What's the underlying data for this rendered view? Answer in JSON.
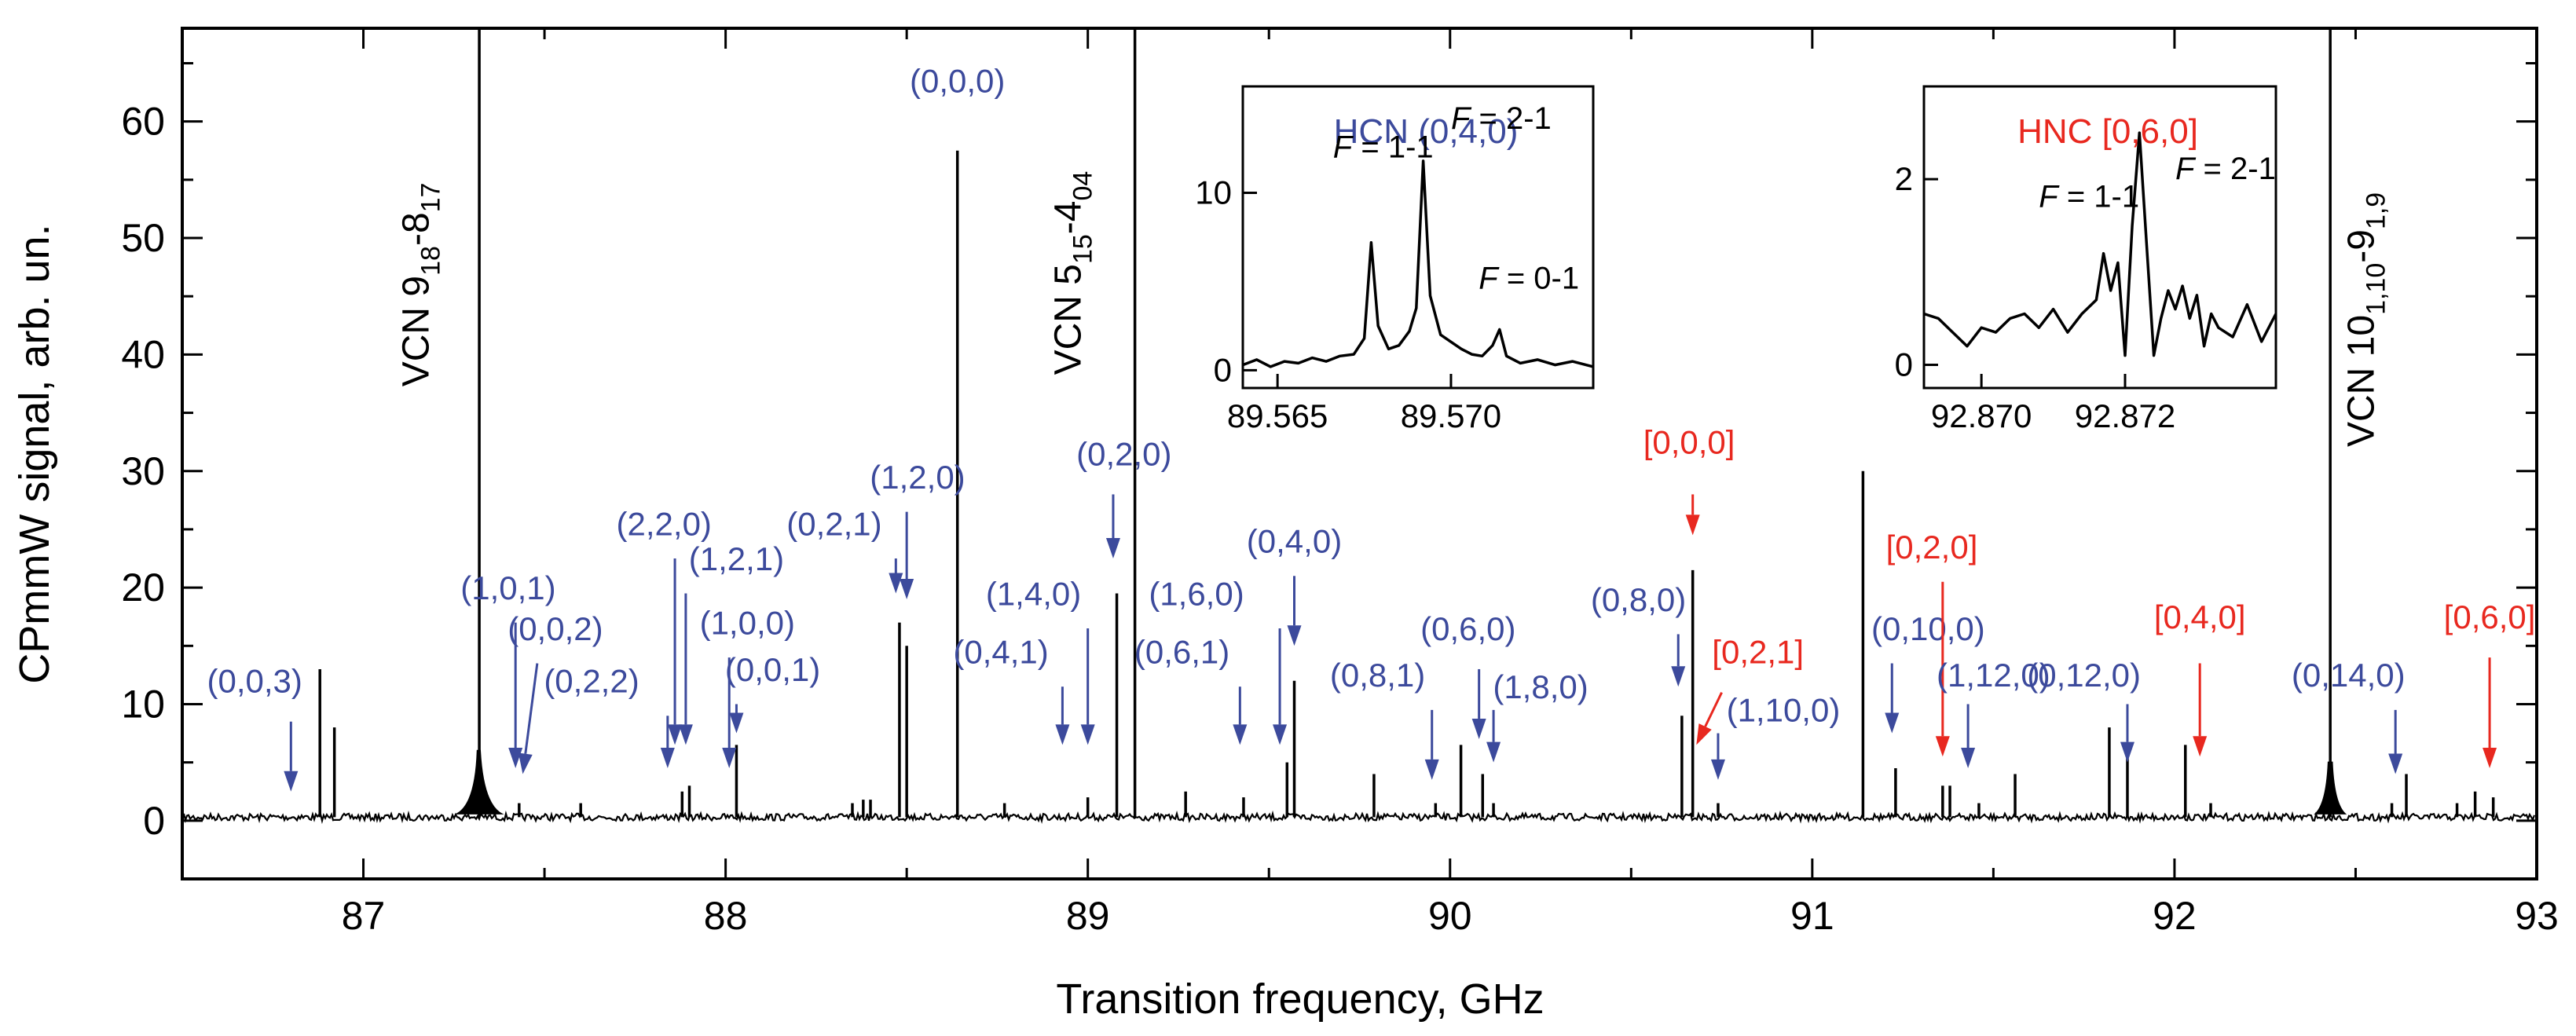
{
  "chart_data": {
    "type": "line",
    "title": "",
    "xlabel": "Transition frequency, GHz",
    "ylabel": "CPmmW signal, arb. un.",
    "xlim": [
      86.5,
      93.0
    ],
    "ylim": [
      -5,
      68
    ],
    "xticks": [
      "87",
      "88",
      "89",
      "90",
      "91",
      "92",
      "93"
    ],
    "yticks": [
      "0",
      "10",
      "20",
      "30",
      "40",
      "50",
      "60"
    ],
    "series": [
      {
        "name": "spectrum",
        "color": "#000000",
        "peaks": [
          {
            "x": 86.88,
            "y": 13
          },
          {
            "x": 86.92,
            "y": 8
          },
          {
            "x": 87.32,
            "y": 68
          },
          {
            "x": 87.43,
            "y": 1.5
          },
          {
            "x": 87.6,
            "y": 1.5
          },
          {
            "x": 87.88,
            "y": 2.5
          },
          {
            "x": 87.9,
            "y": 3
          },
          {
            "x": 88.03,
            "y": 6.5
          },
          {
            "x": 88.35,
            "y": 1.5
          },
          {
            "x": 88.38,
            "y": 1.8
          },
          {
            "x": 88.4,
            "y": 1.8
          },
          {
            "x": 88.48,
            "y": 17
          },
          {
            "x": 88.5,
            "y": 15
          },
          {
            "x": 88.64,
            "y": 57.5
          },
          {
            "x": 88.77,
            "y": 1.5
          },
          {
            "x": 89.0,
            "y": 2
          },
          {
            "x": 89.08,
            "y": 19.5
          },
          {
            "x": 89.13,
            "y": 68
          },
          {
            "x": 89.27,
            "y": 2.5
          },
          {
            "x": 89.43,
            "y": 2
          },
          {
            "x": 89.55,
            "y": 5
          },
          {
            "x": 89.57,
            "y": 12
          },
          {
            "x": 89.79,
            "y": 4
          },
          {
            "x": 89.96,
            "y": 1.5
          },
          {
            "x": 90.03,
            "y": 6.5
          },
          {
            "x": 90.09,
            "y": 4
          },
          {
            "x": 90.12,
            "y": 1.5
          },
          {
            "x": 90.64,
            "y": 9
          },
          {
            "x": 90.67,
            "y": 21.5
          },
          {
            "x": 90.74,
            "y": 1.5
          },
          {
            "x": 91.14,
            "y": 30
          },
          {
            "x": 91.23,
            "y": 4.5
          },
          {
            "x": 91.36,
            "y": 3
          },
          {
            "x": 91.38,
            "y": 3
          },
          {
            "x": 91.46,
            "y": 1.5
          },
          {
            "x": 91.56,
            "y": 4
          },
          {
            "x": 91.82,
            "y": 8
          },
          {
            "x": 91.87,
            "y": 5.5
          },
          {
            "x": 92.03,
            "y": 6.5
          },
          {
            "x": 92.1,
            "y": 1.5
          },
          {
            "x": 92.43,
            "y": 68
          },
          {
            "x": 92.6,
            "y": 1.5
          },
          {
            "x": 92.64,
            "y": 4
          },
          {
            "x": 92.78,
            "y": 1.5
          },
          {
            "x": 92.83,
            "y": 2.5
          },
          {
            "x": 92.88,
            "y": 2
          }
        ]
      }
    ],
    "vcn_labels": [
      {
        "main": "VCN   9",
        "sub1": "18",
        "mid": "-8",
        "sub2": "17",
        "x": 87.18,
        "y": 46
      },
      {
        "main": "VCN   5",
        "sub1": "15",
        "mid": "-4",
        "sub2": "04",
        "x": 88.98,
        "y": 47
      },
      {
        "main": "VCN   10",
        "sub1": "1,10",
        "mid": "-9",
        "sub2": "1,9",
        "x": 92.55,
        "y": 43
      }
    ],
    "hcn_label_color": "#3c4a9c",
    "hnc_label_color": "#e8281f",
    "annotations": [
      {
        "text": "(0,0,3)",
        "color": "blue",
        "label_x": 86.7,
        "label_y": 11,
        "arrow_x": 86.8,
        "arrow_top": 8.5,
        "arrow_bottom": 2.5
      },
      {
        "text": "(1,0,1)",
        "color": "blue",
        "label_x": 87.4,
        "label_y": 19,
        "arrow_x": 87.42,
        "arrow_top": 17,
        "arrow_bottom": 4.5
      },
      {
        "text": "(0,0,2)",
        "color": "blue",
        "label_x": 87.53,
        "label_y": 15.5,
        "arrow_x": 87.48,
        "arrow_top": 13.5,
        "arrow_bottom": 4,
        "arrow_x2": 87.44
      },
      {
        "text": "(0,2,2)",
        "color": "blue",
        "label_x": 87.63,
        "label_y": 11,
        "arrow_x": 87.84,
        "arrow_top": 9,
        "arrow_bottom": 4.5
      },
      {
        "text": "(2,2,0)",
        "color": "blue",
        "label_x": 87.83,
        "label_y": 24.5,
        "arrow_x": 87.86,
        "arrow_top": 22.5,
        "arrow_bottom": 6.5
      },
      {
        "text": "(1,2,1)",
        "color": "blue",
        "label_x": 88.03,
        "label_y": 21.5,
        "arrow_x": 87.89,
        "arrow_top": 19.5,
        "arrow_bottom": 6.5
      },
      {
        "text": "(1,0,0)",
        "color": "blue",
        "label_x": 88.06,
        "label_y": 16,
        "arrow_x": 88.01,
        "arrow_top": 14,
        "arrow_bottom": 4.5
      },
      {
        "text": "(0,0,1)",
        "color": "blue",
        "label_x": 88.13,
        "label_y": 12,
        "arrow_x": 88.03,
        "arrow_top": 10,
        "arrow_bottom": 7.5
      },
      {
        "text": "(0,2,1)",
        "color": "blue",
        "label_x": 88.3,
        "label_y": 24.5,
        "arrow_x": 88.47,
        "arrow_top": 22.5,
        "arrow_bottom": 19.5
      },
      {
        "text": "(1,2,0)",
        "color": "blue",
        "label_x": 88.53,
        "label_y": 28.5,
        "arrow_x": 88.5,
        "arrow_top": 26.5,
        "arrow_bottom": 19
      },
      {
        "text": "(0,0,0)",
        "color": "blue",
        "label_x": 88.64,
        "label_y": 62.5,
        "arrow_x": null,
        "arrow_top": null,
        "arrow_bottom": null
      },
      {
        "text": "(1,4,0)",
        "color": "blue",
        "label_x": 88.85,
        "label_y": 18.5,
        "arrow_x": 89.0,
        "arrow_top": 16.5,
        "arrow_bottom": 6.5
      },
      {
        "text": "(0,4,1)",
        "color": "blue",
        "label_x": 88.76,
        "label_y": 13.5,
        "arrow_x": 88.93,
        "arrow_top": 11.5,
        "arrow_bottom": 6.5
      },
      {
        "text": "(0,2,0)",
        "color": "blue",
        "label_x": 89.1,
        "label_y": 30.5,
        "arrow_x": 89.07,
        "arrow_top": 28,
        "arrow_bottom": 22.5
      },
      {
        "text": "(1,6,0)",
        "color": "blue",
        "label_x": 89.3,
        "label_y": 18.5,
        "arrow_x": 89.53,
        "arrow_top": 16.5,
        "arrow_bottom": 6.5
      },
      {
        "text": "(0,6,1)",
        "color": "blue",
        "label_x": 89.26,
        "label_y": 13.5,
        "arrow_x": 89.42,
        "arrow_top": 11.5,
        "arrow_bottom": 6.5
      },
      {
        "text": "(0,4,0)",
        "color": "blue",
        "label_x": 89.57,
        "label_y": 23,
        "arrow_x": 89.57,
        "arrow_top": 21,
        "arrow_bottom": 15
      },
      {
        "text": "(0,8,1)",
        "color": "blue",
        "label_x": 89.8,
        "label_y": 11.5,
        "arrow_x": 89.95,
        "arrow_top": 9.5,
        "arrow_bottom": 3.5
      },
      {
        "text": "(0,6,0)",
        "color": "blue",
        "label_x": 90.05,
        "label_y": 15.5,
        "arrow_x": 90.08,
        "arrow_top": 13,
        "arrow_bottom": 7
      },
      {
        "text": "(1,8,0)",
        "color": "blue",
        "label_x": 90.25,
        "label_y": 10.5,
        "arrow_x": 90.12,
        "arrow_top": 9.5,
        "arrow_bottom": 5
      },
      {
        "text": "(0,8,0)",
        "color": "blue",
        "label_x": 90.52,
        "label_y": 18,
        "arrow_x": 90.63,
        "arrow_top": 16,
        "arrow_bottom": 11.5
      },
      {
        "text": "[0,0,0]",
        "color": "red",
        "label_x": 90.66,
        "label_y": 31.5,
        "arrow_x": 90.67,
        "arrow_top": 28,
        "arrow_bottom": 24.5
      },
      {
        "text": "[0,2,1]",
        "color": "red",
        "label_x": 90.85,
        "label_y": 13.5,
        "arrow_x": 90.75,
        "arrow_top": 11,
        "arrow_bottom": 6.5,
        "arrow_x2": 90.68
      },
      {
        "text": "(1,10,0)",
        "color": "blue",
        "label_x": 90.92,
        "label_y": 8.5,
        "arrow_x": 90.74,
        "arrow_top": 7.5,
        "arrow_bottom": 3.5
      },
      {
        "text": "(0,10,0)",
        "color": "blue",
        "label_x": 91.32,
        "label_y": 15.5,
        "arrow_x": 91.22,
        "arrow_top": 13.5,
        "arrow_bottom": 7.5
      },
      {
        "text": "[0,2,0]",
        "color": "red",
        "label_x": 91.33,
        "label_y": 22.5,
        "arrow_x": 91.36,
        "arrow_top": 20.5,
        "arrow_bottom": 5.5
      },
      {
        "text": "(1,12,0)",
        "color": "blue",
        "label_x": 91.5,
        "label_y": 11.5,
        "arrow_x": 91.43,
        "arrow_top": 10,
        "arrow_bottom": 4.5
      },
      {
        "text": "(0,12,0)",
        "color": "blue",
        "label_x": 91.75,
        "label_y": 11.5,
        "arrow_x": 91.87,
        "arrow_top": 10,
        "arrow_bottom": 5
      },
      {
        "text": "[0,4,0]",
        "color": "red",
        "label_x": 92.07,
        "label_y": 16.5,
        "arrow_x": 92.07,
        "arrow_top": 13.5,
        "arrow_bottom": 5.5
      },
      {
        "text": "(0,14,0)",
        "color": "blue",
        "label_x": 92.48,
        "label_y": 11.5,
        "arrow_x": 92.61,
        "arrow_top": 9.5,
        "arrow_bottom": 4
      },
      {
        "text": "[0,6,0]",
        "color": "red",
        "label_x": 92.87,
        "label_y": 16.5,
        "arrow_x": 92.87,
        "arrow_top": 14,
        "arrow_bottom": 4.5
      }
    ],
    "insets": [
      {
        "name": "hcn-inset",
        "title": "HCN (0,4,0)",
        "title_color": "blue",
        "xlim": [
          89.564,
          89.5741
        ],
        "ylim": [
          -1,
          16
        ],
        "xticks": [
          89.565,
          89.57
        ],
        "xtick_labels": [
          "89.565",
          "89.570"
        ],
        "yticks": [
          0,
          10
        ],
        "ytick_labels": [
          "0",
          "10"
        ],
        "points": [
          [
            89.564,
            0.3
          ],
          [
            89.5644,
            0.6
          ],
          [
            89.5648,
            0.2
          ],
          [
            89.5652,
            0.5
          ],
          [
            89.5656,
            0.4
          ],
          [
            89.566,
            0.7
          ],
          [
            89.5664,
            0.5
          ],
          [
            89.5668,
            0.8
          ],
          [
            89.5672,
            0.9
          ],
          [
            89.5675,
            1.8
          ],
          [
            89.5677,
            7.2
          ],
          [
            89.5679,
            2.5
          ],
          [
            89.5682,
            1.2
          ],
          [
            89.5685,
            1.4
          ],
          [
            89.5688,
            2.2
          ],
          [
            89.569,
            3.5
          ],
          [
            89.5692,
            11.8
          ],
          [
            89.5694,
            4.2
          ],
          [
            89.5697,
            2.0
          ],
          [
            89.57,
            1.6
          ],
          [
            89.5703,
            1.2
          ],
          [
            89.5706,
            0.9
          ],
          [
            89.5709,
            0.8
          ],
          [
            89.5712,
            1.4
          ],
          [
            89.5714,
            2.3
          ],
          [
            89.5716,
            0.8
          ],
          [
            89.572,
            0.4
          ],
          [
            89.5725,
            0.6
          ],
          [
            89.573,
            0.3
          ],
          [
            89.5735,
            0.5
          ],
          [
            89.5741,
            0.2
          ]
        ],
        "labels": [
          {
            "prefix": "F",
            "text": " = 1-1",
            "x": 89.5666,
            "y": 12
          },
          {
            "prefix": "F",
            "text": " = 2-1",
            "x": 89.57,
            "y": 13.6
          },
          {
            "prefix": "F",
            "text": " = 0-1",
            "x": 89.5708,
            "y": 4.6
          }
        ]
      },
      {
        "name": "hnc-inset",
        "title": "HNC [0,6,0]",
        "title_color": "red",
        "xlim": [
          92.8692,
          92.8741
        ],
        "ylim": [
          -0.25,
          3.0
        ],
        "xticks": [
          92.87,
          92.872
        ],
        "xtick_labels": [
          "92.870",
          "92.872"
        ],
        "yticks": [
          0,
          2
        ],
        "ytick_labels": [
          "0",
          "2"
        ],
        "points": [
          [
            92.8692,
            0.55
          ],
          [
            92.8694,
            0.5
          ],
          [
            92.8696,
            0.35
          ],
          [
            92.8698,
            0.2
          ],
          [
            92.87,
            0.4
          ],
          [
            92.8702,
            0.35
          ],
          [
            92.8704,
            0.5
          ],
          [
            92.8706,
            0.55
          ],
          [
            92.8708,
            0.4
          ],
          [
            92.871,
            0.6
          ],
          [
            92.8712,
            0.35
          ],
          [
            92.8714,
            0.55
          ],
          [
            92.8716,
            0.7
          ],
          [
            92.8717,
            1.2
          ],
          [
            92.8718,
            0.8
          ],
          [
            92.8719,
            1.1
          ],
          [
            92.872,
            0.1
          ],
          [
            92.8721,
            1.5
          ],
          [
            92.8722,
            2.5
          ],
          [
            92.8723,
            1.3
          ],
          [
            92.8724,
            0.1
          ],
          [
            92.8725,
            0.5
          ],
          [
            92.8726,
            0.8
          ],
          [
            92.8727,
            0.6
          ],
          [
            92.8728,
            0.85
          ],
          [
            92.8729,
            0.5
          ],
          [
            92.873,
            0.75
          ],
          [
            92.8731,
            0.2
          ],
          [
            92.8732,
            0.55
          ],
          [
            92.8733,
            0.4
          ],
          [
            92.8735,
            0.3
          ],
          [
            92.8737,
            0.65
          ],
          [
            92.8739,
            0.25
          ],
          [
            92.8741,
            0.55
          ]
        ],
        "labels": [
          {
            "prefix": "F",
            "text": " = 1-1",
            "x": 92.8708,
            "y": 1.7
          },
          {
            "prefix": "F",
            "text": " = 2-1",
            "x": 92.8727,
            "y": 2.0
          }
        ]
      }
    ]
  }
}
